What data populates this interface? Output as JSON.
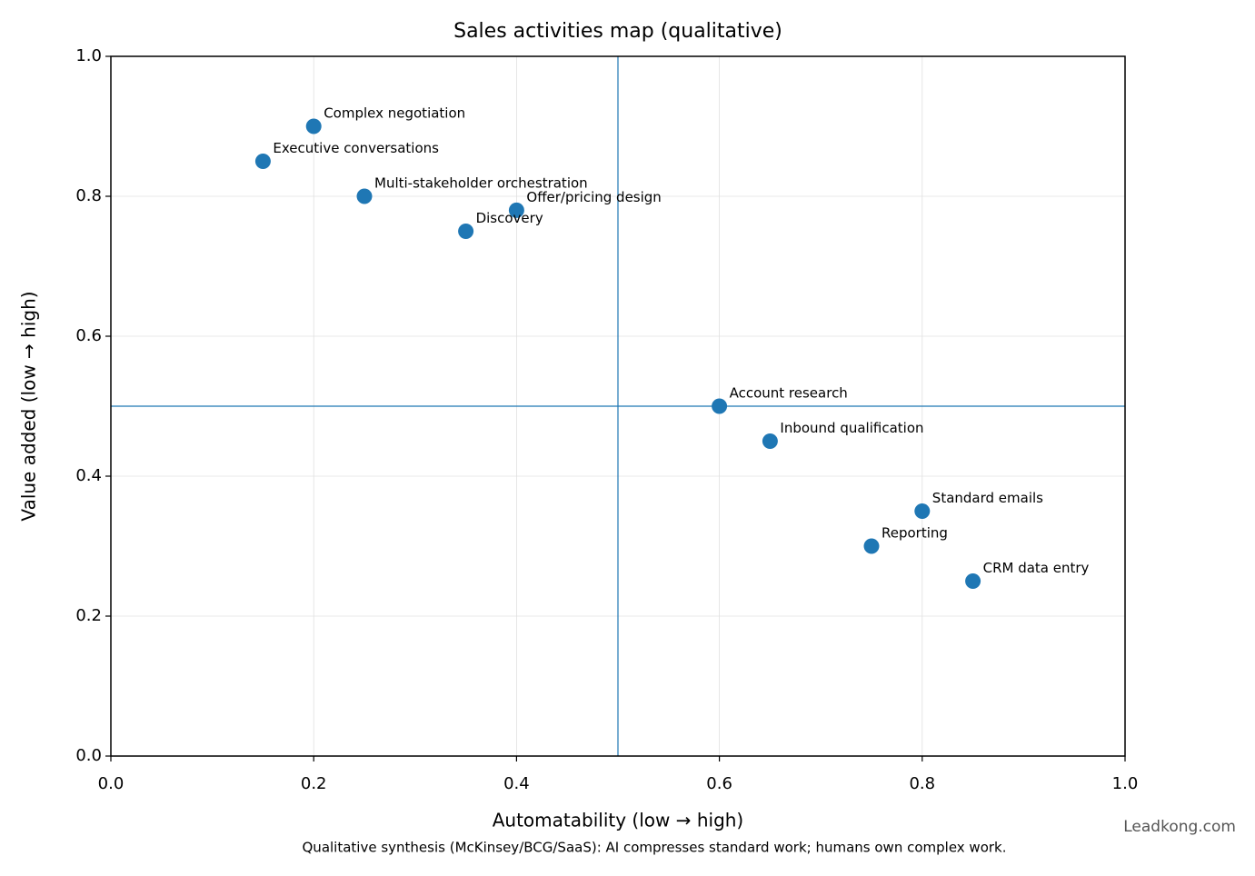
{
  "chart_data": {
    "type": "scatter",
    "title": "Sales activities map (qualitative)",
    "x_label": "Automatability (low → high)",
    "y_label": "Value added (low → high)",
    "point_labels": [
      "Complex negotiation",
      "Executive conversations",
      "Multi-stakeholder orchestration",
      "Offer/pricing design",
      "Discovery",
      "Account research",
      "Inbound qualification",
      "Standard emails",
      "Reporting",
      "CRM data entry"
    ],
    "x": [
      0.2,
      0.15,
      0.25,
      0.4,
      0.35,
      0.6,
      0.65,
      0.8,
      0.75,
      0.85
    ],
    "values": [
      0.9,
      0.85,
      0.8,
      0.78,
      0.75,
      0.5,
      0.45,
      0.35,
      0.3,
      0.25
    ],
    "color": "#1f77b4",
    "xlim": [
      0,
      1
    ],
    "ylim": [
      0,
      1
    ],
    "xticks": [
      {
        "value": 0,
        "label": "0.0"
      },
      {
        "value": 0.2,
        "label": "0.2"
      },
      {
        "value": 0.4,
        "label": "0.4"
      },
      {
        "value": 0.6,
        "label": "0.6"
      },
      {
        "value": 0.8,
        "label": "0.8"
      },
      {
        "value": 1,
        "label": "1.0"
      }
    ],
    "yticks": [
      {
        "value": 0,
        "label": "0.0"
      },
      {
        "value": 0.2,
        "label": "0.2"
      },
      {
        "value": 0.4,
        "label": "0.4"
      },
      {
        "value": 0.6,
        "label": "0.6"
      },
      {
        "value": 0.8,
        "label": "0.8"
      },
      {
        "value": 1,
        "label": "1.0"
      }
    ],
    "vlines": [
      0.5
    ],
    "hlines": [
      0.5
    ],
    "grid": true,
    "footnote": "Qualitative synthesis (McKinsey/BCG/SaaS): AI compresses standard work; humans own complex work.",
    "watermark": "Leadkong.com"
  }
}
